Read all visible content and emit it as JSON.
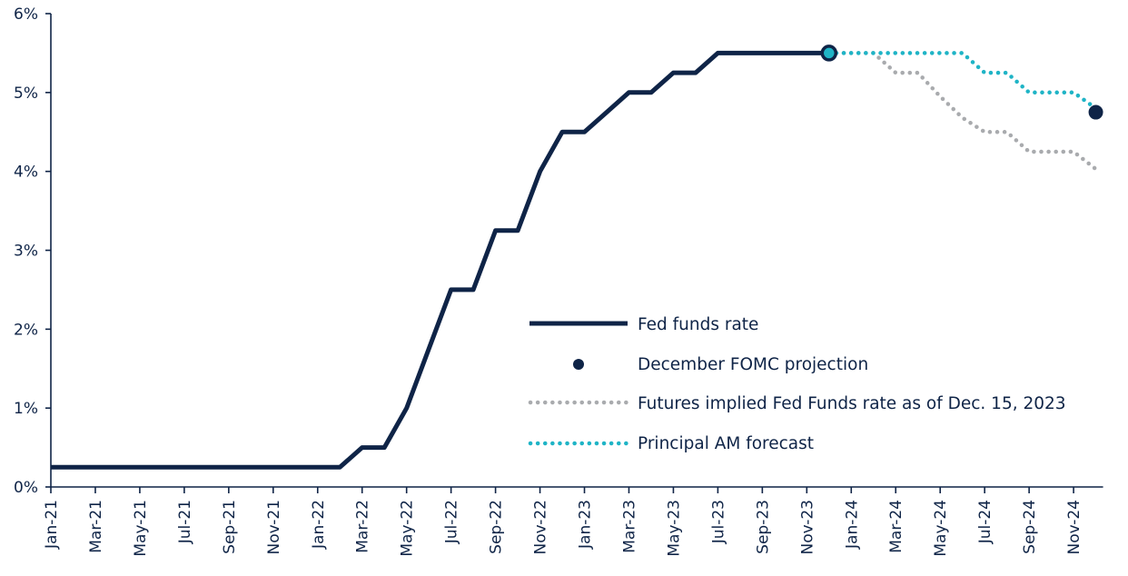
{
  "chart_data": {
    "type": "line",
    "x_start": "2021-01",
    "y_ticks": [
      {
        "value": 0,
        "label": "0%"
      },
      {
        "value": 1,
        "label": "1%"
      },
      {
        "value": 2,
        "label": "2%"
      },
      {
        "value": 3,
        "label": "3%"
      },
      {
        "value": 4,
        "label": "4%"
      },
      {
        "value": 5,
        "label": "5%"
      },
      {
        "value": 6,
        "label": "6%"
      }
    ],
    "ylim": [
      0,
      6
    ],
    "x_ticks": [
      {
        "date": "2021-01",
        "label": "Jan-21"
      },
      {
        "date": "2021-03",
        "label": "Mar-21"
      },
      {
        "date": "2021-05",
        "label": "May-21"
      },
      {
        "date": "2021-07",
        "label": "Jul-21"
      },
      {
        "date": "2021-09",
        "label": "Sep-21"
      },
      {
        "date": "2021-11",
        "label": "Nov-21"
      },
      {
        "date": "2022-01",
        "label": "Jan-22"
      },
      {
        "date": "2022-03",
        "label": "Mar-22"
      },
      {
        "date": "2022-05",
        "label": "May-22"
      },
      {
        "date": "2022-07",
        "label": "Jul-22"
      },
      {
        "date": "2022-09",
        "label": "Sep-22"
      },
      {
        "date": "2022-11",
        "label": "Nov-22"
      },
      {
        "date": "2023-01",
        "label": "Jan-23"
      },
      {
        "date": "2023-03",
        "label": "Mar-23"
      },
      {
        "date": "2023-05",
        "label": "May-23"
      },
      {
        "date": "2023-07",
        "label": "Jul-23"
      },
      {
        "date": "2023-09",
        "label": "Sep-23"
      },
      {
        "date": "2023-11",
        "label": "Nov-23"
      },
      {
        "date": "2024-01",
        "label": "Jan-24"
      },
      {
        "date": "2024-03",
        "label": "Mar-24"
      },
      {
        "date": "2024-05",
        "label": "May-24"
      },
      {
        "date": "2024-07",
        "label": "Jul-24"
      },
      {
        "date": "2024-09",
        "label": "Sep-24"
      },
      {
        "date": "2024-11",
        "label": "Nov-24"
      }
    ],
    "x_end": "2024-12",
    "series": [
      {
        "name": "Fed funds rate",
        "style": "solid",
        "color": "#0f2447",
        "points": [
          [
            "2021-01",
            0.25
          ],
          [
            "2022-02",
            0.25
          ],
          [
            "2022-03",
            0.5
          ],
          [
            "2022-04",
            0.5
          ],
          [
            "2022-05",
            1.0
          ],
          [
            "2022-07",
            2.5
          ],
          [
            "2022-08",
            2.5
          ],
          [
            "2022-09",
            3.25
          ],
          [
            "2022-10",
            3.25
          ],
          [
            "2022-11",
            4.0
          ],
          [
            "2022-12",
            4.5
          ],
          [
            "2023-01",
            4.5
          ],
          [
            "2023-03",
            5.0
          ],
          [
            "2023-04",
            5.0
          ],
          [
            "2023-05",
            5.25
          ],
          [
            "2023-06",
            5.25
          ],
          [
            "2023-07",
            5.5
          ],
          [
            "2023-12",
            5.5
          ]
        ]
      },
      {
        "name": "Futures implied Fed Funds rate as of Dec. 15, 2023",
        "style": "dotted",
        "color": "#a9abae",
        "points": [
          [
            "2023-12",
            5.5
          ],
          [
            "2024-02",
            5.5
          ],
          [
            "2024-03",
            5.25
          ],
          [
            "2024-04",
            5.25
          ],
          [
            "2024-05",
            4.95
          ],
          [
            "2024-06",
            4.68
          ],
          [
            "2024-07",
            4.5
          ],
          [
            "2024-08",
            4.5
          ],
          [
            "2024-09",
            4.25
          ],
          [
            "2024-11",
            4.25
          ],
          [
            "2024-12",
            4.03
          ]
        ]
      },
      {
        "name": "Principal AM forecast",
        "style": "dotted",
        "color": "#1fb4c6",
        "points": [
          [
            "2023-12",
            5.5
          ],
          [
            "2024-06",
            5.5
          ],
          [
            "2024-07",
            5.25
          ],
          [
            "2024-08",
            5.25
          ],
          [
            "2024-09",
            5.0
          ],
          [
            "2024-11",
            5.0
          ],
          [
            "2024-12",
            4.8
          ]
        ]
      }
    ],
    "markers": [
      {
        "name": "Last observed",
        "date": "2023-12",
        "value": 5.5,
        "color": "#0f2447",
        "inner": "#1fb4c6"
      },
      {
        "name": "December FOMC projection",
        "date": "2024-12",
        "value": 4.75,
        "color": "#0f2447"
      }
    ],
    "legend": {
      "placement": "center-right",
      "items": [
        {
          "label": "Fed funds rate",
          "type": "line"
        },
        {
          "label": "December FOMC projection",
          "type": "dot"
        },
        {
          "label": "Futures implied Fed Funds rate as of Dec. 15, 2023",
          "type": "dotted-gray"
        },
        {
          "label": "Principal AM forecast",
          "type": "dotted-teal"
        }
      ]
    }
  }
}
